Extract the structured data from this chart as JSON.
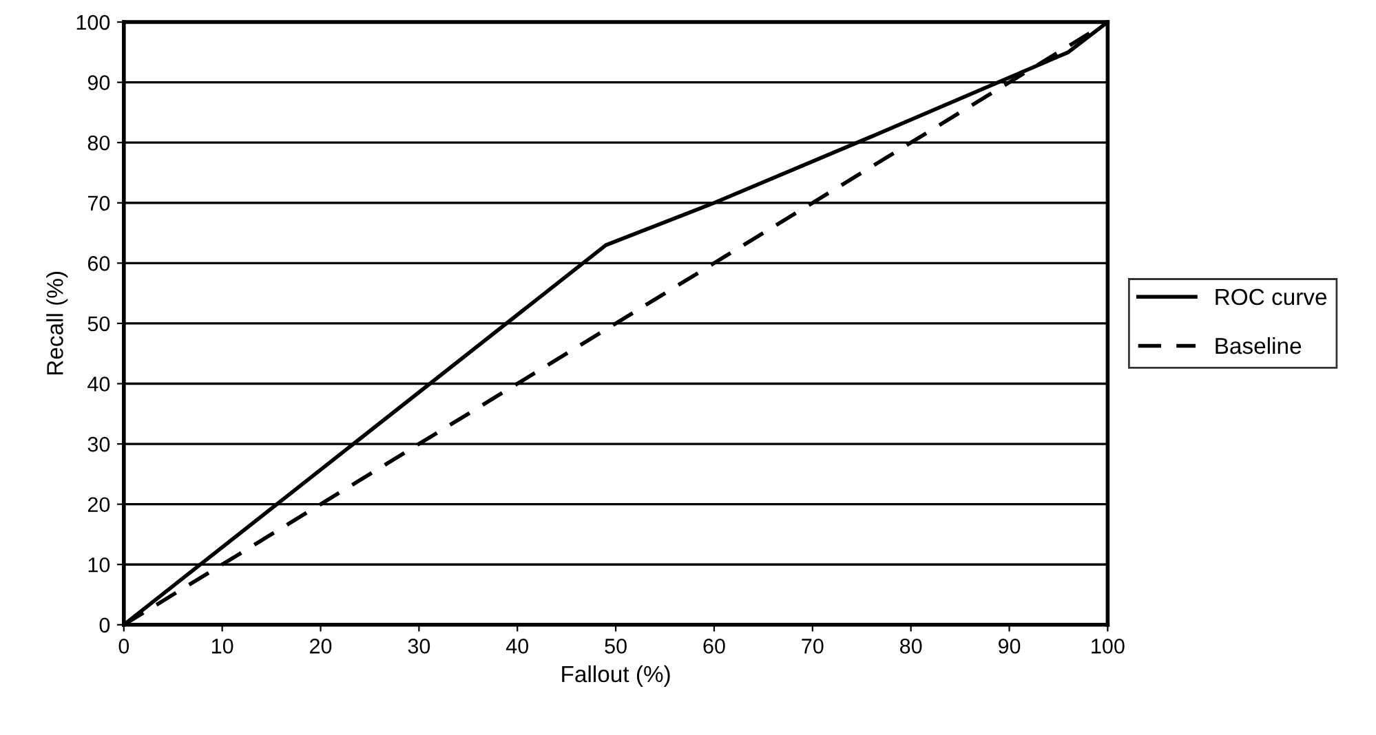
{
  "chart_data": {
    "type": "line",
    "xlabel": "Fallout (%)",
    "ylabel": "Recall (%)",
    "series": [
      {
        "name": "ROC curve",
        "color": "#000000",
        "x": [
          0,
          49,
          60,
          76,
          96,
          100
        ],
        "values": [
          0,
          63,
          70,
          81,
          95,
          100
        ],
        "line_style": "solid"
      },
      {
        "name": "Baseline",
        "color": "#000000",
        "x": [
          0,
          100
        ],
        "values": [
          0,
          100
        ],
        "line_style": "dashed"
      }
    ],
    "xlim": [
      0,
      100
    ],
    "ylim": [
      0,
      100
    ],
    "xticks": [
      0,
      10,
      20,
      30,
      40,
      50,
      60,
      70,
      80,
      90,
      100
    ],
    "yticks": [
      0,
      10,
      20,
      30,
      40,
      50,
      60,
      70,
      80,
      90,
      100
    ],
    "grid": "y",
    "legend": "right",
    "marker": "none"
  }
}
